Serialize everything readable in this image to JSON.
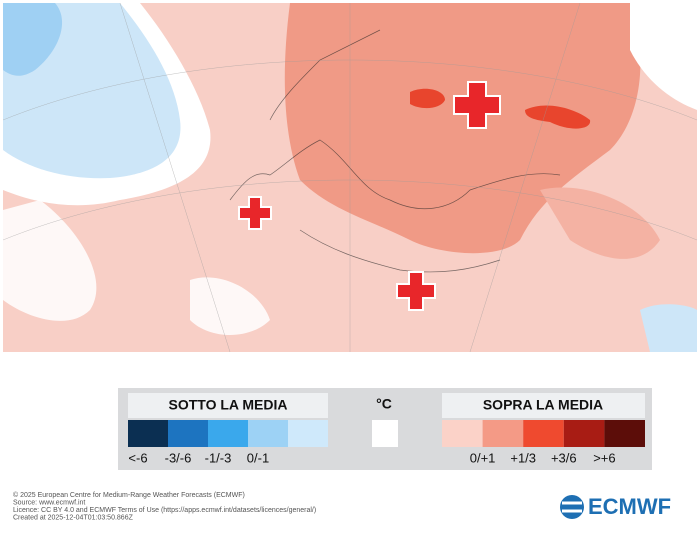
{
  "legend": {
    "below": {
      "title": "SOTTO LA MEDIA",
      "items": [
        {
          "label": "<-6",
          "color": "#0b2f52"
        },
        {
          "label": "-3/-6",
          "color": "#1d74c0"
        },
        {
          "label": "-1/-3",
          "color": "#3aa8ec"
        },
        {
          "label": "0/-1",
          "color": "#9dd2f5"
        },
        {
          "label": "",
          "color": "#cfe9fb"
        }
      ]
    },
    "unit": "°C",
    "above": {
      "title": "SOPRA LA MEDIA",
      "items": [
        {
          "label": "",
          "color": "#fbd2c8"
        },
        {
          "label": "0/+1",
          "color": "#f49a86"
        },
        {
          "label": "+1/3",
          "color": "#ef4a2f"
        },
        {
          "label": "+3/6",
          "color": "#a81c14"
        },
        {
          "label": ">+6",
          "color": "#5c0d09"
        }
      ]
    }
  },
  "footer": {
    "lines": [
      "© 2025 European Centre for Medium-Range Weather Forecasts (ECMWF)",
      "Source: www.ecmwf.int",
      "Licence: CC BY 4.0 and ECMWF Terms of Use (https://apps.ecmwf.int/datasets/licences/general/)",
      "Created at 2025-12-04T01:03:50.866Z"
    ]
  },
  "logo": "ECMWF"
}
